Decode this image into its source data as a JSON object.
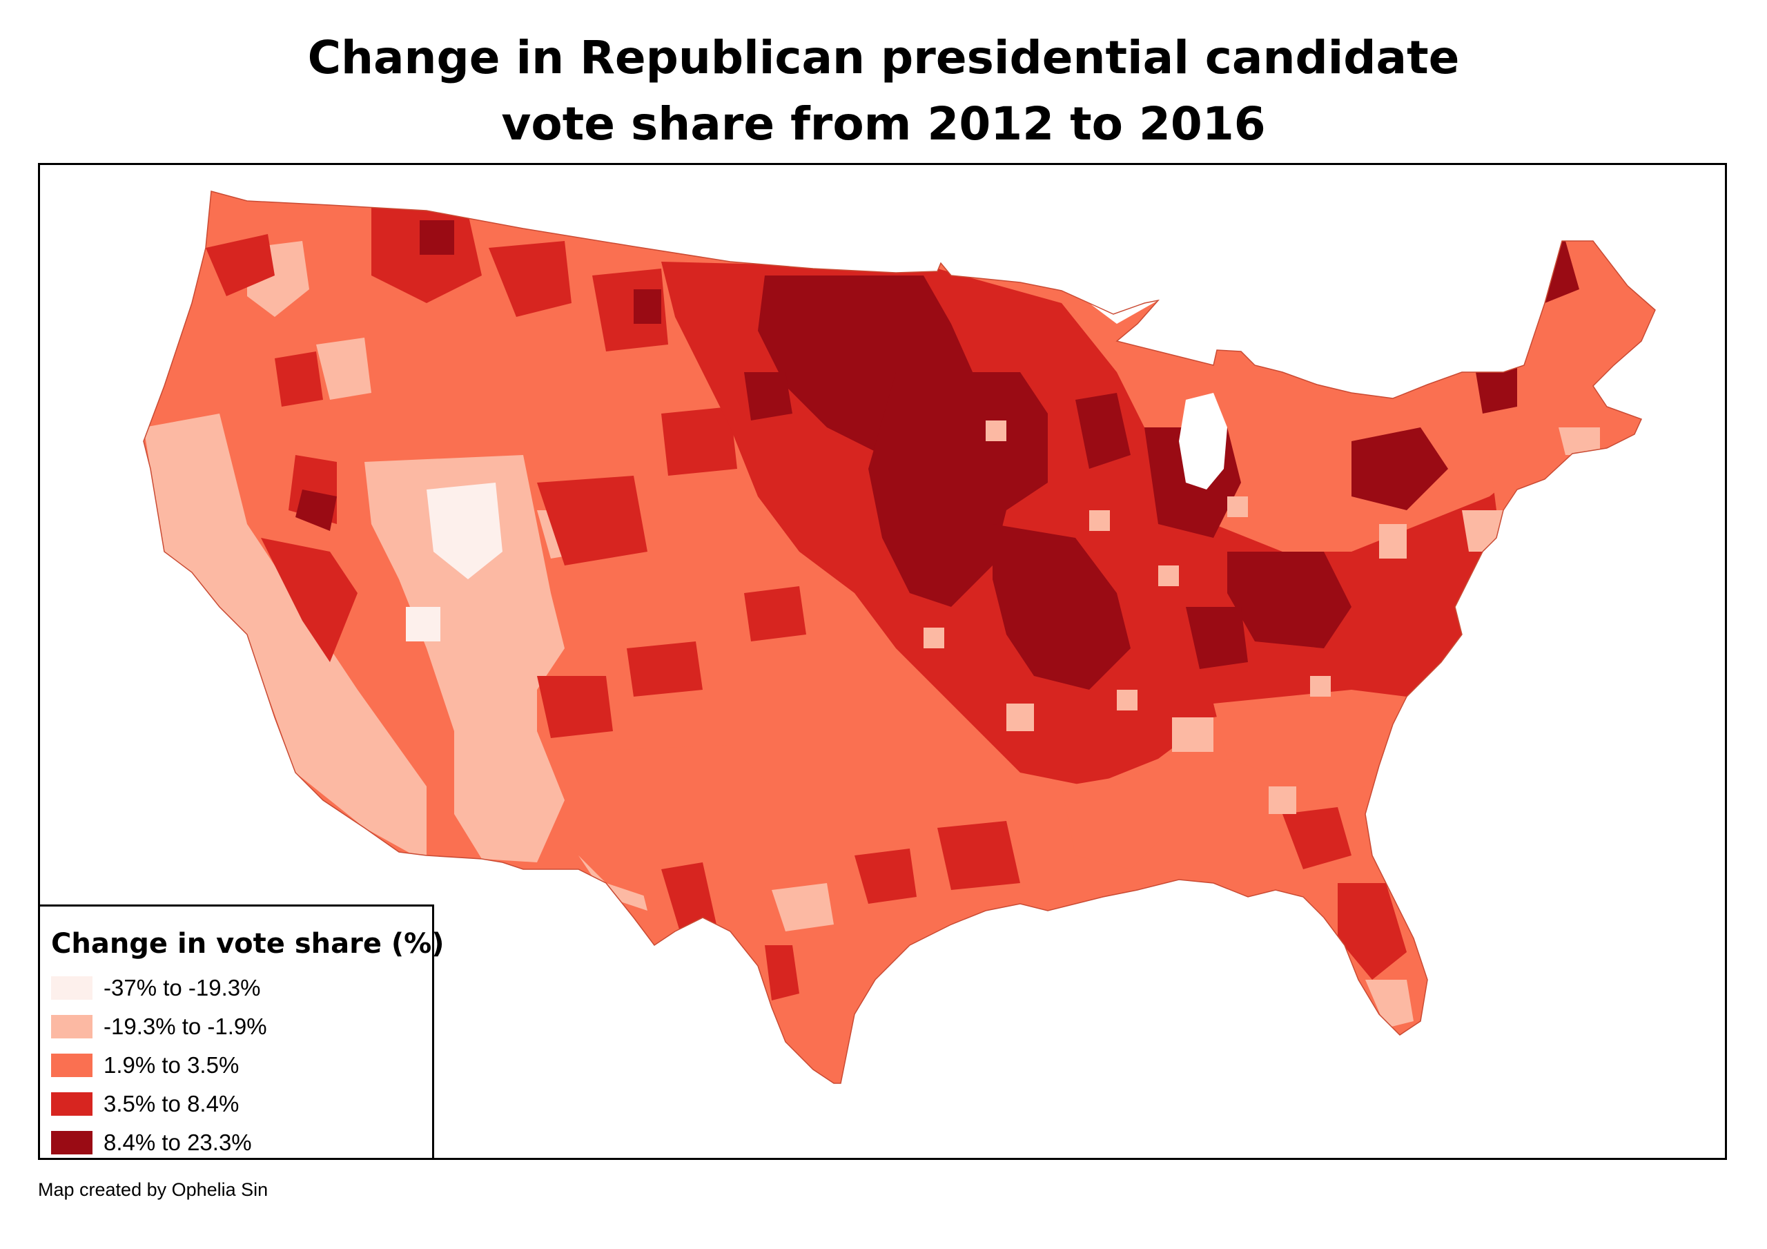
{
  "title": {
    "line1": "Change in Republican presidential candidate",
    "line2": "vote share from 2012 to 2016"
  },
  "legend": {
    "title": "Change in vote share (%)",
    "items": [
      {
        "label": "-37% to -19.3%",
        "color": "#fdf0ec"
      },
      {
        "label": "-19.3% to -1.9%",
        "color": "#fcb9a3"
      },
      {
        "label": "1.9% to 3.5%",
        "color": "#fa7051"
      },
      {
        "label": "3.5% to 8.4%",
        "color": "#d72520"
      },
      {
        "label": "8.4% to 23.3%",
        "color": "#9a0b14"
      }
    ]
  },
  "credit": "Map created by Ophelia Sin"
}
